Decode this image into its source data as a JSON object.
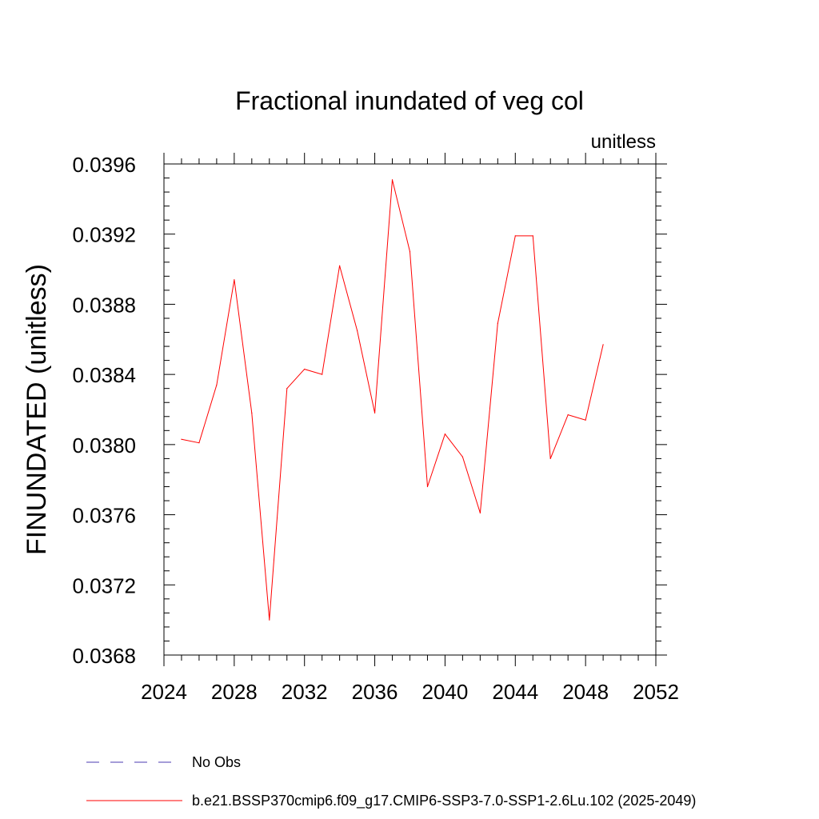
{
  "chart_data": {
    "type": "line",
    "title": "Fractional inundated of veg col",
    "units": "unitless",
    "xlabel": "",
    "ylabel": "FINUNDATED  (unitless)",
    "xlim": [
      2024,
      2052
    ],
    "ylim": [
      0.0368,
      0.0396
    ],
    "x_ticks": [
      2024,
      2028,
      2032,
      2036,
      2040,
      2044,
      2048,
      2052
    ],
    "x_tick_labels": [
      "2024",
      "2028",
      "2032",
      "2036",
      "2040",
      "2044",
      "2048",
      "2052"
    ],
    "y_ticks": [
      0.0368,
      0.0372,
      0.0376,
      0.038,
      0.0384,
      0.0388,
      0.0392,
      0.0396
    ],
    "y_tick_labels": [
      "0.0368",
      "0.0372",
      "0.0376",
      "0.0380",
      "0.0384",
      "0.0388",
      "0.0392",
      "0.0396"
    ],
    "grid": false,
    "legend_position": "bottom",
    "series": [
      {
        "name": "No Obs",
        "color": "#4b3bb0",
        "style": "dashed",
        "x": [],
        "values": []
      },
      {
        "name": "b.e21.BSSP370cmip6.f09_g17.CMIP6-SSP3-7.0-SSP1-2.6Lu.102 (2025-2049)",
        "color": "#ff0000",
        "style": "solid",
        "x": [
          2025,
          2026,
          2027,
          2028,
          2029,
          2030,
          2031,
          2032,
          2033,
          2034,
          2035,
          2036,
          2037,
          2038,
          2039,
          2040,
          2041,
          2042,
          2043,
          2044,
          2045,
          2046,
          2047,
          2048,
          2049
        ],
        "values": [
          0.03803,
          0.03801,
          0.03834,
          0.03894,
          0.03818,
          0.037,
          0.03832,
          0.03843,
          0.0384,
          0.03902,
          0.03865,
          0.03818,
          0.03951,
          0.0391,
          0.03776,
          0.03806,
          0.03793,
          0.03761,
          0.03869,
          0.03919,
          0.03919,
          0.03792,
          0.03817,
          0.03814,
          0.03857
        ]
      }
    ]
  }
}
